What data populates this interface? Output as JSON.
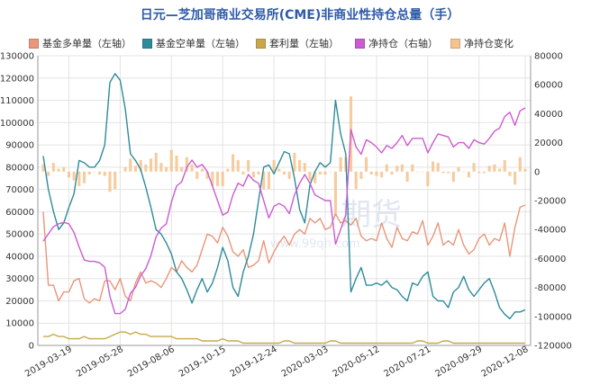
{
  "chart_data": {
    "type": "line",
    "title": "日元—芝加哥商业交易所(CME)非商业性持仓总量（手）",
    "xlabel": "",
    "ylabel": "",
    "x_tick_labels": [
      "2019-03-19",
      "2019-05-28",
      "2019-08-06",
      "2019-10-15",
      "2019-12-24",
      "2020-03-03",
      "2020-05-12",
      "2020-07-21",
      "2020-09-29",
      "2020-12-08"
    ],
    "y_left_ticks": [
      "0",
      "10000",
      "20000",
      "30000",
      "40000",
      "50000",
      "60000",
      "70000",
      "80000",
      "90000",
      "100000",
      "110000",
      "120000",
      "130000"
    ],
    "y_right_ticks": [
      "-120000",
      "-100000",
      "-80000",
      "-60000",
      "-40000",
      "-20000",
      "0",
      "20000",
      "40000",
      "60000",
      "80000"
    ],
    "ylim_left": [
      0,
      130000
    ],
    "ylim_right": [
      -120000,
      80000
    ],
    "grid": true,
    "legend_position": "top",
    "weeks": 95,
    "series": [
      {
        "name": "基金多单量（左轴）",
        "axis": "left",
        "kind": "line",
        "color": "#e9967a",
        "values": [
          60000,
          27000,
          27000,
          20000,
          24000,
          24000,
          29000,
          30000,
          21000,
          19000,
          21000,
          20000,
          29000,
          29000,
          25000,
          30000,
          22000,
          20000,
          28000,
          33000,
          28000,
          29000,
          28000,
          26000,
          30000,
          35000,
          33000,
          38000,
          35000,
          33000,
          36000,
          43000,
          50000,
          49000,
          46000,
          53000,
          49000,
          42000,
          40000,
          43000,
          35000,
          36000,
          38000,
          47000,
          37000,
          42000,
          46000,
          49000,
          45000,
          50000,
          52000,
          50000,
          57000,
          55000,
          57000,
          52000,
          53000,
          59000,
          55000,
          56000,
          54000,
          57000,
          49000,
          47000,
          48000,
          47000,
          55000,
          48000,
          44000,
          53000,
          48000,
          47000,
          51000,
          50000,
          56000,
          45000,
          49000,
          55000,
          45000,
          47000,
          45000,
          52000,
          45000,
          41000,
          43000,
          48000,
          50000,
          45000,
          48000,
          47000,
          55000,
          40000,
          53000,
          62000,
          63000
        ]
      },
      {
        "name": "基金空单量（左轴）",
        "axis": "left",
        "kind": "line",
        "color": "#2e8b9a",
        "values": [
          85000,
          70000,
          60000,
          52000,
          55000,
          62000,
          68000,
          83000,
          82000,
          80000,
          80000,
          83000,
          90000,
          118000,
          122000,
          119000,
          106000,
          86000,
          83000,
          79000,
          71000,
          62000,
          52000,
          50000,
          46000,
          41000,
          33000,
          30000,
          25000,
          19000,
          25000,
          30000,
          24000,
          28000,
          35000,
          44000,
          38000,
          26000,
          22000,
          33000,
          40000,
          50000,
          65000,
          80000,
          81000,
          77000,
          82000,
          87000,
          86000,
          75000,
          61000,
          55000,
          72000,
          78000,
          82000,
          80000,
          82000,
          110000,
          95000,
          86000,
          24000,
          30000,
          35000,
          27000,
          27000,
          28000,
          27000,
          29000,
          26000,
          25000,
          22000,
          20000,
          28000,
          27000,
          31000,
          33000,
          22000,
          20000,
          20000,
          17000,
          24000,
          26000,
          31000,
          25000,
          22000,
          25000,
          28000,
          30000,
          24000,
          17000,
          14000,
          12000,
          15000,
          15000,
          16000
        ]
      },
      {
        "name": "套利量（左轴）",
        "axis": "left",
        "kind": "line",
        "color": "#c8a84b",
        "values": [
          4000,
          4000,
          5000,
          4000,
          4000,
          3000,
          3000,
          3000,
          4000,
          3000,
          3000,
          3000,
          3000,
          4000,
          5000,
          6000,
          6000,
          5000,
          6000,
          5000,
          5000,
          4000,
          4000,
          4000,
          4000,
          4000,
          3000,
          3000,
          3000,
          3000,
          3000,
          2000,
          2000,
          2000,
          2000,
          3000,
          2000,
          2000,
          2000,
          1000,
          1000,
          1000,
          1000,
          1000,
          1000,
          1000,
          1000,
          2000,
          2000,
          1000,
          1000,
          1000,
          1000,
          1000,
          1000,
          1000,
          2000,
          2000,
          1000,
          1000,
          1000,
          1000,
          1000,
          1000,
          1000,
          1000,
          1000,
          1000,
          1000,
          1000,
          1000,
          1000,
          1000,
          2000,
          2000,
          1000,
          1000,
          1000,
          2000,
          2000,
          1000,
          1000,
          1000,
          1000,
          1000,
          1000,
          1000,
          1000,
          1000,
          1000,
          1000,
          1000,
          1000,
          1000,
          1000
        ]
      },
      {
        "name": "净持仓（右轴）",
        "axis": "right",
        "kind": "line",
        "color": "#cc5bd1",
        "values": [
          -48000,
          -43000,
          -38000,
          -36000,
          -35000,
          -36000,
          -42000,
          -52000,
          -61000,
          -62000,
          -62000,
          -63000,
          -66000,
          -86000,
          -98000,
          -98000,
          -95000,
          -84000,
          -80000,
          -72000,
          -67000,
          -58000,
          -45000,
          -39000,
          -36000,
          -21000,
          -10000,
          -7000,
          3000,
          8000,
          3000,
          5000,
          0,
          -10000,
          -20000,
          -30000,
          -28000,
          -16000,
          -8000,
          -10000,
          -2000,
          -6000,
          -8000,
          -20000,
          -32000,
          -24000,
          -22000,
          -24000,
          -29000,
          -16000,
          -8000,
          -2000,
          -8000,
          -16000,
          -18000,
          -20000,
          -20000,
          -50000,
          -40000,
          -30000,
          29000,
          17000,
          12000,
          22000,
          20000,
          17000,
          13000,
          18000,
          16000,
          20000,
          25000,
          18000,
          23000,
          23000,
          23000,
          13000,
          20000,
          26000,
          25000,
          24000,
          17000,
          20000,
          20000,
          16000,
          22000,
          20000,
          19000,
          23000,
          28000,
          30000,
          38000,
          41000,
          32000,
          42000,
          44000
        ]
      },
      {
        "name": "净持仓变化",
        "axis": "right",
        "kind": "bar",
        "color": "#f5c38e",
        "values": [
          5000,
          -3000,
          6000,
          2000,
          3000,
          -4000,
          -6000,
          -10000,
          -8000,
          -2000,
          0,
          -2000,
          -3000,
          -14000,
          -12000,
          0,
          3000,
          9000,
          4000,
          8000,
          5000,
          9000,
          13000,
          6000,
          3000,
          15000,
          11000,
          3000,
          10000,
          5000,
          -5000,
          2000,
          -5000,
          -10000,
          -10000,
          -10000,
          2000,
          12000,
          8000,
          -2000,
          8000,
          -4000,
          -2000,
          -12000,
          -12000,
          8000,
          2000,
          -2000,
          -5000,
          13000,
          8000,
          6000,
          -6000,
          -8000,
          -2000,
          -2000,
          0,
          -30000,
          10000,
          10000,
          52000,
          -12000,
          -5000,
          10000,
          -2000,
          -3000,
          -4000,
          5000,
          -2000,
          4000,
          5000,
          -7000,
          5000,
          0,
          0,
          -10000,
          7000,
          6000,
          -1000,
          -1000,
          -7000,
          3000,
          0,
          -4000,
          6000,
          -1000,
          -1000,
          4000,
          5000,
          2000,
          8000,
          -3000,
          -9000,
          10000,
          2000
        ]
      }
    ]
  },
  "watermark": {
    "text": "期货",
    "url": "www.99qh.com"
  }
}
